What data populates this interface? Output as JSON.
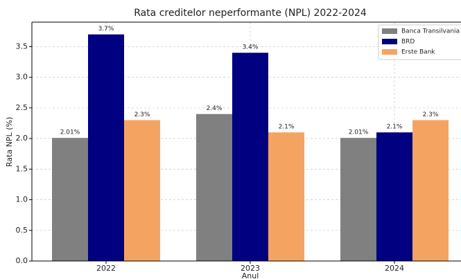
{
  "chart_data": {
    "type": "bar",
    "title": "Rata creditelor neperformante (NPL) 2022-2024",
    "x_label": "Anul",
    "y_label": "Rata NPL (%)",
    "categories": [
      "2022",
      "2023",
      "2024"
    ],
    "series": [
      {
        "name": "Banca Transilvania",
        "color": "#808080",
        "values": [
          2.01,
          2.4,
          2.01
        ],
        "value_labels": [
          "2.01%",
          "2.4%",
          "2.01%"
        ]
      },
      {
        "name": "BRD",
        "color": "#000080",
        "values": [
          3.7,
          3.4,
          2.1
        ],
        "value_labels": [
          "3.7%",
          "3.4%",
          "2.1%"
        ]
      },
      {
        "name": "Erste Bank",
        "color": "#f4a460",
        "values": [
          2.3,
          2.1,
          2.3
        ],
        "value_labels": [
          "2.3%",
          "2.1%",
          "2.3%"
        ]
      }
    ],
    "ylim": [
      0,
      3.9
    ],
    "yticks": [
      {
        "value": 0,
        "label": "0.0"
      },
      {
        "value": 0.5,
        "label": "0.5"
      },
      {
        "value": 1,
        "label": "1.0"
      },
      {
        "value": 1.5,
        "label": "1.5"
      },
      {
        "value": 2,
        "label": "2.0"
      },
      {
        "value": 2.5,
        "label": "2.5"
      },
      {
        "value": 3,
        "label": "3.0"
      },
      {
        "value": 3.5,
        "label": "3.5"
      }
    ],
    "grid": true,
    "legend": "upper right"
  }
}
